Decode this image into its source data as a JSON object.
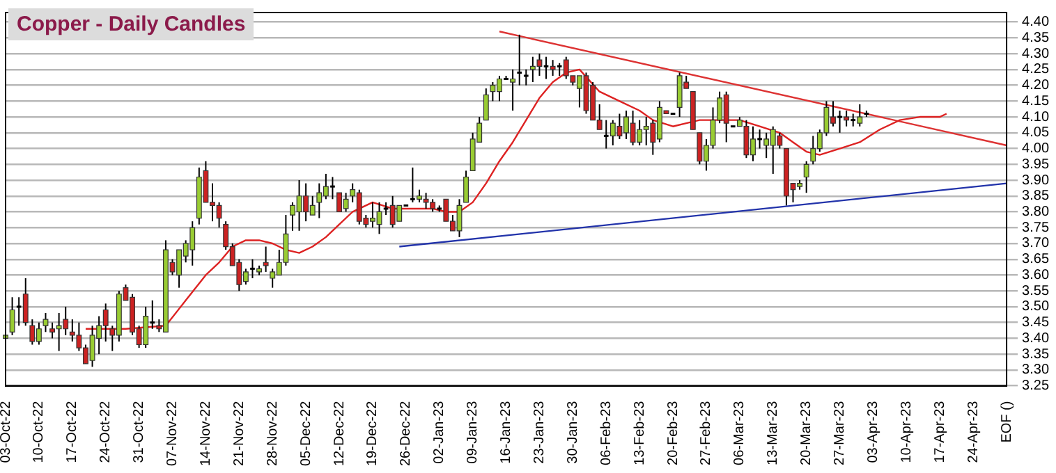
{
  "chart_data": {
    "type": "candlestick",
    "title": "Copper - Daily Candles",
    "categories": [
      "03-Oct-22",
      null,
      null,
      null,
      null,
      "10-Oct-22",
      null,
      null,
      null,
      null,
      "17-Oct-22",
      null,
      null,
      null,
      null,
      "24-Oct-22",
      null,
      null,
      null,
      null,
      "31-Oct-22",
      null,
      null,
      null,
      null,
      "07-Nov-22",
      null,
      null,
      null,
      null,
      "14-Nov-22",
      null,
      null,
      null,
      null,
      "21-Nov-22",
      null,
      null,
      null,
      null,
      "28-Nov-22",
      null,
      null,
      null,
      null,
      "05-Dec-22",
      null,
      null,
      null,
      null,
      "12-Dec-22",
      null,
      null,
      null,
      null,
      "19-Dec-22",
      null,
      null,
      null,
      null,
      "26-Dec-22",
      null,
      null,
      null,
      null,
      "02-Jan-23",
      null,
      null,
      null,
      null,
      "09-Jan-23",
      null,
      null,
      null,
      null,
      "16-Jan-23",
      null,
      null,
      null,
      null,
      "23-Jan-23",
      null,
      null,
      null,
      null,
      "30-Jan-23",
      null,
      null,
      null,
      null,
      "06-Feb-23",
      null,
      null,
      null,
      null,
      "13-Feb-23",
      null,
      null,
      null,
      null,
      "20-Feb-23",
      null,
      null,
      null,
      null,
      "27-Feb-23",
      null,
      null,
      null,
      null,
      "06-Mar-23",
      null,
      null,
      null,
      null,
      "13-Mar-23",
      null,
      null,
      null,
      null,
      "20-Mar-23",
      null,
      null,
      null,
      null,
      "27-Mar-23",
      null,
      null,
      null,
      null,
      "03-Apr-23",
      null,
      null,
      null,
      null,
      "10-Apr-23",
      null,
      null,
      null,
      null,
      "17-Apr-23",
      null,
      null,
      null,
      null,
      "24-Apr-23",
      null,
      null,
      null,
      null,
      "EOF ()"
    ],
    "ohlc": [
      [
        3.4,
        3.44,
        3.36,
        3.41
      ],
      [
        3.42,
        3.53,
        3.41,
        3.49
      ],
      [
        3.5,
        3.53,
        3.44,
        3.5
      ],
      [
        3.54,
        3.59,
        3.44,
        3.45
      ],
      [
        3.44,
        3.46,
        3.38,
        3.39
      ],
      [
        3.39,
        3.45,
        3.38,
        3.43
      ],
      [
        3.44,
        3.48,
        3.42,
        3.46
      ],
      [
        3.43,
        3.45,
        3.4,
        3.42
      ],
      [
        3.43,
        3.48,
        3.36,
        3.44
      ],
      [
        3.46,
        3.5,
        3.41,
        3.43
      ],
      [
        3.42,
        3.46,
        3.39,
        3.41
      ],
      [
        3.41,
        3.45,
        3.36,
        3.37
      ],
      [
        3.37,
        3.38,
        3.32,
        3.32
      ],
      [
        3.33,
        3.44,
        3.31,
        3.41
      ],
      [
        3.4,
        3.47,
        3.35,
        3.44
      ],
      [
        3.49,
        3.51,
        3.39,
        3.44
      ],
      [
        3.43,
        3.44,
        3.36,
        3.41
      ],
      [
        3.41,
        3.55,
        3.39,
        3.54
      ],
      [
        3.56,
        3.57,
        3.52,
        3.52
      ],
      [
        3.53,
        3.54,
        3.41,
        3.42
      ],
      [
        3.43,
        3.44,
        3.37,
        3.38
      ],
      [
        3.38,
        3.5,
        3.37,
        3.47
      ],
      [
        3.45,
        3.52,
        3.43,
        3.45
      ],
      [
        3.44,
        3.46,
        3.42,
        3.43
      ],
      [
        3.42,
        3.71,
        3.42,
        3.68
      ],
      [
        3.64,
        3.65,
        3.6,
        3.61
      ],
      [
        3.6,
        3.68,
        3.56,
        3.68
      ],
      [
        3.66,
        3.71,
        3.64,
        3.7
      ],
      [
        3.68,
        3.77,
        3.63,
        3.75
      ],
      [
        3.78,
        3.94,
        3.76,
        3.91
      ],
      [
        3.93,
        3.96,
        3.83,
        3.83
      ],
      [
        3.83,
        3.89,
        3.77,
        3.82
      ],
      [
        3.82,
        3.83,
        3.75,
        3.78
      ],
      [
        3.76,
        3.77,
        3.68,
        3.69
      ],
      [
        3.69,
        3.7,
        3.63,
        3.63
      ],
      [
        3.64,
        3.65,
        3.55,
        3.57
      ],
      [
        3.58,
        3.62,
        3.57,
        3.61
      ],
      [
        3.62,
        3.65,
        3.59,
        3.62
      ],
      [
        3.61,
        3.63,
        3.6,
        3.62
      ],
      [
        3.64,
        3.69,
        3.61,
        3.63
      ],
      [
        3.59,
        3.62,
        3.56,
        3.61
      ],
      [
        3.6,
        3.68,
        3.6,
        3.64
      ],
      [
        3.64,
        3.79,
        3.63,
        3.73
      ],
      [
        3.79,
        3.83,
        3.74,
        3.82
      ],
      [
        3.8,
        3.9,
        3.74,
        3.85
      ],
      [
        3.85,
        3.89,
        3.77,
        3.8
      ],
      [
        3.79,
        3.85,
        3.79,
        3.82
      ],
      [
        3.83,
        3.89,
        3.78,
        3.86
      ],
      [
        3.85,
        3.92,
        3.84,
        3.88
      ],
      [
        3.88,
        3.91,
        3.84,
        3.88
      ],
      [
        3.86,
        3.86,
        3.8,
        3.8
      ],
      [
        3.81,
        3.86,
        3.8,
        3.84
      ],
      [
        3.85,
        3.89,
        3.83,
        3.87
      ],
      [
        3.86,
        3.87,
        3.76,
        3.77
      ],
      [
        3.78,
        3.79,
        3.75,
        3.76
      ],
      [
        3.77,
        3.83,
        3.75,
        3.78
      ],
      [
        3.76,
        3.83,
        3.73,
        3.8
      ],
      [
        3.81,
        3.83,
        3.79,
        3.81
      ],
      [
        3.82,
        3.85,
        3.75,
        3.76
      ],
      [
        3.77,
        3.82,
        3.77,
        3.82
      ],
      [
        3.82,
        3.82,
        3.82,
        3.82
      ],
      [
        3.84,
        3.94,
        3.83,
        3.84
      ],
      [
        3.84,
        3.87,
        3.83,
        3.85
      ],
      [
        3.84,
        3.86,
        3.81,
        3.83
      ],
      [
        3.83,
        3.84,
        3.8,
        3.81
      ],
      [
        3.81,
        3.82,
        3.8,
        3.81
      ],
      [
        3.84,
        3.84,
        3.77,
        3.77
      ],
      [
        3.77,
        3.79,
        3.74,
        3.74
      ],
      [
        3.74,
        3.84,
        3.72,
        3.82
      ],
      [
        3.83,
        3.93,
        3.83,
        3.91
      ],
      [
        3.93,
        4.05,
        3.93,
        4.03
      ],
      [
        4.02,
        4.1,
        4.02,
        4.08
      ],
      [
        4.09,
        4.19,
        4.09,
        4.17
      ],
      [
        4.18,
        4.21,
        4.15,
        4.2
      ],
      [
        4.18,
        4.23,
        4.15,
        4.22
      ],
      [
        4.22,
        4.23,
        4.22,
        4.22
      ],
      [
        4.21,
        4.25,
        4.12,
        4.22
      ],
      [
        4.24,
        4.36,
        4.2,
        4.24
      ],
      [
        4.23,
        4.25,
        4.2,
        4.23
      ],
      [
        4.25,
        4.29,
        4.21,
        4.26
      ],
      [
        4.28,
        4.3,
        4.23,
        4.26
      ],
      [
        4.26,
        4.29,
        4.22,
        4.26
      ],
      [
        4.26,
        4.28,
        4.23,
        4.25
      ],
      [
        4.26,
        4.27,
        4.23,
        4.26
      ],
      [
        4.28,
        4.29,
        4.22,
        4.23
      ],
      [
        4.23,
        4.23,
        4.2,
        4.21
      ],
      [
        4.19,
        4.23,
        4.13,
        4.23
      ],
      [
        4.23,
        4.24,
        4.11,
        4.12
      ],
      [
        4.2,
        4.21,
        4.09,
        4.09
      ],
      [
        4.09,
        4.14,
        4.06,
        4.06
      ],
      [
        4.04,
        4.09,
        4.0,
        4.04
      ],
      [
        4.04,
        4.09,
        4.01,
        4.08
      ],
      [
        4.07,
        4.11,
        4.03,
        4.04
      ],
      [
        4.05,
        4.12,
        4.03,
        4.1
      ],
      [
        4.08,
        4.12,
        4.01,
        4.02
      ],
      [
        4.02,
        4.09,
        4.01,
        4.06
      ],
      [
        4.06,
        4.1,
        4.01,
        4.07
      ],
      [
        4.08,
        4.09,
        3.98,
        4.02
      ],
      [
        4.03,
        4.15,
        4.02,
        4.13
      ],
      [
        4.12,
        4.12,
        4.11,
        4.11
      ],
      [
        4.11,
        4.11,
        4.11,
        4.11
      ],
      [
        4.13,
        4.24,
        4.1,
        4.23
      ],
      [
        4.21,
        4.23,
        4.19,
        4.19
      ],
      [
        4.18,
        4.18,
        4.06,
        4.06
      ],
      [
        4.05,
        4.05,
        3.95,
        3.96
      ],
      [
        3.96,
        4.03,
        3.93,
        4.01
      ],
      [
        4.01,
        4.13,
        4.0,
        4.09
      ],
      [
        4.09,
        4.18,
        4.08,
        4.16
      ],
      [
        4.17,
        4.18,
        4.02,
        4.08
      ],
      [
        4.07,
        4.07,
        4.07,
        4.07
      ],
      [
        4.07,
        4.1,
        4.07,
        4.09
      ],
      [
        4.07,
        4.09,
        3.97,
        3.98
      ],
      [
        3.98,
        4.07,
        3.96,
        4.03
      ],
      [
        4.03,
        4.06,
        4.0,
        4.03
      ],
      [
        4.01,
        4.05,
        3.97,
        4.03
      ],
      [
        4.01,
        4.07,
        3.92,
        4.06
      ],
      [
        4.04,
        4.05,
        4.0,
        4.01
      ],
      [
        4.0,
        4.0,
        3.82,
        3.85
      ],
      [
        3.89,
        3.89,
        3.83,
        3.87
      ],
      [
        3.88,
        3.9,
        3.87,
        3.89
      ],
      [
        3.91,
        3.96,
        3.86,
        3.95
      ],
      [
        3.96,
        4.04,
        3.95,
        4.0
      ],
      [
        4.0,
        4.06,
        3.99,
        4.05
      ],
      [
        4.05,
        4.15,
        4.04,
        4.13
      ],
      [
        4.1,
        4.15,
        4.07,
        4.08
      ],
      [
        4.1,
        4.12,
        4.05,
        4.1
      ],
      [
        4.1,
        4.12,
        4.07,
        4.09
      ],
      [
        4.09,
        4.11,
        4.07,
        4.09
      ],
      [
        4.08,
        4.14,
        4.07,
        4.1
      ],
      [
        4.11,
        4.12,
        4.1,
        4.11
      ],
      null,
      null,
      null,
      null,
      null,
      null,
      null,
      null,
      null,
      null,
      null,
      null,
      null,
      null,
      null,
      null,
      null,
      null,
      null,
      null,
      null
    ],
    "colors": [
      "#99cc33",
      "#99cc33",
      "#000000",
      "#cc2222",
      "#cc2222",
      "#99cc33",
      "#99cc33",
      "#cc2222",
      "#99cc33",
      "#cc2222",
      "#cc2222",
      "#cc2222",
      "#cc2222",
      "#99cc33",
      "#99cc33",
      "#cc2222",
      "#cc2222",
      "#99cc33",
      "#cc2222",
      "#cc2222",
      "#cc2222",
      "#99cc33",
      "#000000",
      "#cc2222",
      "#99cc33",
      "#cc2222",
      "#99cc33",
      "#99cc33",
      "#99cc33",
      "#99cc33",
      "#cc2222",
      "#cc2222",
      "#cc2222",
      "#cc2222",
      "#cc2222",
      "#cc2222",
      "#99cc33",
      "#000000",
      "#99cc33",
      "#cc2222",
      "#99cc33",
      "#99cc33",
      "#99cc33",
      "#99cc33",
      "#99cc33",
      "#cc2222",
      "#99cc33",
      "#99cc33",
      "#99cc33",
      "#000000",
      "#cc2222",
      "#99cc33",
      "#99cc33",
      "#cc2222",
      "#cc2222",
      "#99cc33",
      "#99cc33",
      "#000000",
      "#cc2222",
      "#99cc33",
      "#000000",
      "#000000",
      "#99cc33",
      "#cc2222",
      "#cc2222",
      "#000000",
      "#cc2222",
      "#cc2222",
      "#99cc33",
      "#99cc33",
      "#99cc33",
      "#99cc33",
      "#99cc33",
      "#99cc33",
      "#99cc33",
      "#000000",
      "#99cc33",
      "#000000",
      "#000000",
      "#99cc33",
      "#cc2222",
      "#000000",
      "#cc2222",
      "#000000",
      "#cc2222",
      "#cc2222",
      "#99cc33",
      "#cc2222",
      "#cc2222",
      "#cc2222",
      "#000000",
      "#99cc33",
      "#cc2222",
      "#99cc33",
      "#cc2222",
      "#99cc33",
      "#99cc33",
      "#cc2222",
      "#99cc33",
      "#cc2222",
      "#000000",
      "#99cc33",
      "#cc2222",
      "#cc2222",
      "#cc2222",
      "#99cc33",
      "#99cc33",
      "#99cc33",
      "#cc2222",
      "#000000",
      "#99cc33",
      "#cc2222",
      "#99cc33",
      "#000000",
      "#99cc33",
      "#99cc33",
      "#cc2222",
      "#cc2222",
      "#cc2222",
      "#99cc33",
      "#99cc33",
      "#99cc33",
      "#99cc33",
      "#99cc33",
      "#cc2222",
      "#000000",
      "#cc2222",
      "#000000",
      "#99cc33",
      "#000000",
      null,
      null,
      null,
      null,
      null,
      null,
      null,
      null,
      null,
      null,
      null,
      null,
      null,
      null,
      null,
      null,
      null,
      null,
      null,
      null,
      null
    ],
    "series": [
      {
        "type": "line",
        "color": "#dd2222",
        "values": [
          null,
          null,
          null,
          null,
          null,
          null,
          null,
          null,
          null,
          null,
          null,
          null,
          3.43,
          null,
          null,
          null,
          null,
          null,
          3.43,
          null,
          null,
          null,
          null,
          null,
          3.44,
          null,
          null,
          3.52,
          null,
          null,
          3.6,
          null,
          3.64,
          null,
          3.69,
          null,
          3.71,
          null,
          3.71,
          null,
          3.7,
          null,
          3.68,
          null,
          3.67,
          null,
          3.69,
          null,
          3.72,
          null,
          3.76,
          null,
          3.8,
          null,
          null,
          3.83,
          null,
          null,
          3.81,
          null,
          null,
          3.81,
          null,
          null,
          3.81,
          null,
          3.8,
          null,
          3.8,
          null,
          3.83,
          null,
          3.89,
          null,
          3.96,
          null,
          4.02,
          null,
          4.09,
          null,
          4.16,
          null,
          4.21,
          null,
          4.24,
          null,
          4.25,
          null,
          null,
          4.18,
          null,
          null,
          4.15,
          null,
          null,
          4.12,
          null,
          4.09,
          null,
          null,
          4.07,
          null,
          4.08,
          null,
          4.09,
          null,
          null,
          4.09,
          null,
          null,
          4.09,
          null,
          null,
          4.07,
          null,
          null,
          4.05,
          null,
          4.02,
          null,
          3.99,
          null,
          3.98,
          null,
          null,
          4.0,
          null,
          null,
          4.02,
          null,
          null,
          4.06,
          null,
          null,
          4.09,
          null,
          null,
          4.1,
          null,
          null,
          4.1,
          4.11,
          null,
          null,
          null,
          null,
          null,
          null,
          null,
          null,
          null
        ]
      },
      {
        "type": "line",
        "color": "#dd3333",
        "values": [
          null,
          null,
          null,
          null,
          null,
          null,
          null,
          null,
          null,
          null,
          null,
          null,
          null,
          null,
          null,
          null,
          null,
          null,
          null,
          null,
          null,
          null,
          null,
          null,
          null,
          null,
          null,
          null,
          null,
          null,
          null,
          null,
          null,
          null,
          null,
          null,
          null,
          null,
          null,
          null,
          null,
          null,
          null,
          null,
          null,
          null,
          null,
          null,
          null,
          null,
          null,
          null,
          null,
          null,
          null,
          null,
          null,
          null,
          null,
          null,
          null,
          null,
          null,
          null,
          null,
          null,
          null,
          null,
          null,
          null,
          null,
          null,
          null,
          null,
          4.37,
          null,
          null,
          null,
          null,
          null,
          null,
          null,
          null,
          null,
          null,
          null,
          null,
          null,
          null,
          null,
          null,
          null,
          null,
          null,
          null,
          null,
          null,
          null,
          null,
          null,
          null,
          null,
          null,
          null,
          null,
          null,
          null,
          null,
          null,
          null,
          null,
          null,
          null,
          null,
          null,
          null,
          null,
          null,
          null,
          null,
          null,
          null,
          null,
          null,
          null,
          null,
          null,
          null,
          null,
          null,
          null,
          null,
          null,
          null,
          null,
          null,
          null,
          null,
          null,
          null,
          null,
          null,
          null,
          null,
          null,
          null,
          null,
          null,
          null,
          null,
          4.01
        ]
      },
      {
        "type": "line",
        "color": "#2233aa",
        "values": [
          null,
          null,
          null,
          null,
          null,
          null,
          null,
          null,
          null,
          null,
          null,
          null,
          null,
          null,
          null,
          null,
          null,
          null,
          null,
          null,
          null,
          null,
          null,
          null,
          null,
          null,
          null,
          null,
          null,
          null,
          null,
          null,
          null,
          null,
          null,
          null,
          null,
          null,
          null,
          null,
          null,
          null,
          null,
          null,
          null,
          null,
          null,
          null,
          null,
          null,
          null,
          null,
          null,
          null,
          null,
          null,
          null,
          null,
          null,
          3.69,
          null,
          null,
          null,
          null,
          null,
          null,
          null,
          null,
          null,
          null,
          null,
          null,
          null,
          null,
          null,
          null,
          null,
          null,
          null,
          null,
          null,
          null,
          null,
          null,
          null,
          null,
          null,
          null,
          null,
          null,
          null,
          null,
          null,
          null,
          null,
          null,
          null,
          null,
          null,
          null,
          null,
          null,
          null,
          null,
          null,
          null,
          null,
          null,
          null,
          null,
          null,
          null,
          null,
          null,
          null,
          null,
          null,
          null,
          null,
          null,
          null,
          null,
          null,
          null,
          null,
          null,
          null,
          null,
          null,
          null,
          null,
          null,
          null,
          null,
          null,
          null,
          null,
          null,
          null,
          null,
          null,
          null,
          null,
          null,
          null,
          null,
          null,
          null,
          null,
          null,
          3.89
        ]
      }
    ],
    "ylim": [
      3.25,
      4.43
    ],
    "yticks": [
      {
        "value": 3.25,
        "label": "3.25"
      },
      {
        "value": 3.3,
        "label": "3.30"
      },
      {
        "value": 3.35,
        "label": "3.35"
      },
      {
        "value": 3.4,
        "label": "3.40"
      },
      {
        "value": 3.45,
        "label": "3.45"
      },
      {
        "value": 3.5,
        "label": "3.50"
      },
      {
        "value": 3.55,
        "label": "3.55"
      },
      {
        "value": 3.6,
        "label": "3.60"
      },
      {
        "value": 3.65,
        "label": "3.65"
      },
      {
        "value": 3.7,
        "label": "3.70"
      },
      {
        "value": 3.75,
        "label": "3.75"
      },
      {
        "value": 3.8,
        "label": "3.80"
      },
      {
        "value": 3.85,
        "label": "3.85"
      },
      {
        "value": 3.9,
        "label": "3.90"
      },
      {
        "value": 3.95,
        "label": "3.95"
      },
      {
        "value": 4.0,
        "label": "4.00"
      },
      {
        "value": 4.05,
        "label": "4.05"
      },
      {
        "value": 4.1,
        "label": "4.10"
      },
      {
        "value": 4.15,
        "label": "4.15"
      },
      {
        "value": 4.2,
        "label": "4.20"
      },
      {
        "value": 4.25,
        "label": "4.25"
      },
      {
        "value": 4.3,
        "label": "4.30"
      },
      {
        "value": 4.35,
        "label": "4.35"
      },
      {
        "value": 4.4,
        "label": "4.40"
      }
    ],
    "grid": "y",
    "marker": "none",
    "line_style": "solid",
    "legend": false
  }
}
